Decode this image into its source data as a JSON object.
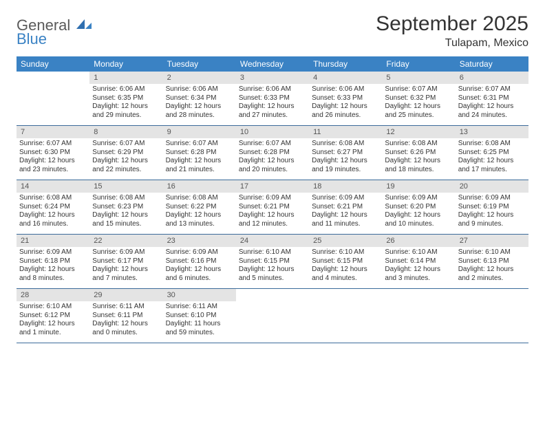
{
  "logo": {
    "part1": "General",
    "part2": "Blue"
  },
  "title": "September 2025",
  "location": "Tulapam, Mexico",
  "dow": [
    "Sunday",
    "Monday",
    "Tuesday",
    "Wednesday",
    "Thursday",
    "Friday",
    "Saturday"
  ],
  "colors": {
    "header_bg": "#3a82c4",
    "header_text": "#ffffff",
    "daynum_bg": "#e4e4e4",
    "rule": "#3a6a9a",
    "logo_gray": "#5a5a5a",
    "logo_blue": "#3a82c4"
  },
  "weeks": [
    [
      {
        "n": "",
        "sr": "",
        "ss": "",
        "dl": ""
      },
      {
        "n": "1",
        "sr": "Sunrise: 6:06 AM",
        "ss": "Sunset: 6:35 PM",
        "dl": "Daylight: 12 hours and 29 minutes."
      },
      {
        "n": "2",
        "sr": "Sunrise: 6:06 AM",
        "ss": "Sunset: 6:34 PM",
        "dl": "Daylight: 12 hours and 28 minutes."
      },
      {
        "n": "3",
        "sr": "Sunrise: 6:06 AM",
        "ss": "Sunset: 6:33 PM",
        "dl": "Daylight: 12 hours and 27 minutes."
      },
      {
        "n": "4",
        "sr": "Sunrise: 6:06 AM",
        "ss": "Sunset: 6:33 PM",
        "dl": "Daylight: 12 hours and 26 minutes."
      },
      {
        "n": "5",
        "sr": "Sunrise: 6:07 AM",
        "ss": "Sunset: 6:32 PM",
        "dl": "Daylight: 12 hours and 25 minutes."
      },
      {
        "n": "6",
        "sr": "Sunrise: 6:07 AM",
        "ss": "Sunset: 6:31 PM",
        "dl": "Daylight: 12 hours and 24 minutes."
      }
    ],
    [
      {
        "n": "7",
        "sr": "Sunrise: 6:07 AM",
        "ss": "Sunset: 6:30 PM",
        "dl": "Daylight: 12 hours and 23 minutes."
      },
      {
        "n": "8",
        "sr": "Sunrise: 6:07 AM",
        "ss": "Sunset: 6:29 PM",
        "dl": "Daylight: 12 hours and 22 minutes."
      },
      {
        "n": "9",
        "sr": "Sunrise: 6:07 AM",
        "ss": "Sunset: 6:28 PM",
        "dl": "Daylight: 12 hours and 21 minutes."
      },
      {
        "n": "10",
        "sr": "Sunrise: 6:07 AM",
        "ss": "Sunset: 6:28 PM",
        "dl": "Daylight: 12 hours and 20 minutes."
      },
      {
        "n": "11",
        "sr": "Sunrise: 6:08 AM",
        "ss": "Sunset: 6:27 PM",
        "dl": "Daylight: 12 hours and 19 minutes."
      },
      {
        "n": "12",
        "sr": "Sunrise: 6:08 AM",
        "ss": "Sunset: 6:26 PM",
        "dl": "Daylight: 12 hours and 18 minutes."
      },
      {
        "n": "13",
        "sr": "Sunrise: 6:08 AM",
        "ss": "Sunset: 6:25 PM",
        "dl": "Daylight: 12 hours and 17 minutes."
      }
    ],
    [
      {
        "n": "14",
        "sr": "Sunrise: 6:08 AM",
        "ss": "Sunset: 6:24 PM",
        "dl": "Daylight: 12 hours and 16 minutes."
      },
      {
        "n": "15",
        "sr": "Sunrise: 6:08 AM",
        "ss": "Sunset: 6:23 PM",
        "dl": "Daylight: 12 hours and 15 minutes."
      },
      {
        "n": "16",
        "sr": "Sunrise: 6:08 AM",
        "ss": "Sunset: 6:22 PM",
        "dl": "Daylight: 12 hours and 13 minutes."
      },
      {
        "n": "17",
        "sr": "Sunrise: 6:09 AM",
        "ss": "Sunset: 6:21 PM",
        "dl": "Daylight: 12 hours and 12 minutes."
      },
      {
        "n": "18",
        "sr": "Sunrise: 6:09 AM",
        "ss": "Sunset: 6:21 PM",
        "dl": "Daylight: 12 hours and 11 minutes."
      },
      {
        "n": "19",
        "sr": "Sunrise: 6:09 AM",
        "ss": "Sunset: 6:20 PM",
        "dl": "Daylight: 12 hours and 10 minutes."
      },
      {
        "n": "20",
        "sr": "Sunrise: 6:09 AM",
        "ss": "Sunset: 6:19 PM",
        "dl": "Daylight: 12 hours and 9 minutes."
      }
    ],
    [
      {
        "n": "21",
        "sr": "Sunrise: 6:09 AM",
        "ss": "Sunset: 6:18 PM",
        "dl": "Daylight: 12 hours and 8 minutes."
      },
      {
        "n": "22",
        "sr": "Sunrise: 6:09 AM",
        "ss": "Sunset: 6:17 PM",
        "dl": "Daylight: 12 hours and 7 minutes."
      },
      {
        "n": "23",
        "sr": "Sunrise: 6:09 AM",
        "ss": "Sunset: 6:16 PM",
        "dl": "Daylight: 12 hours and 6 minutes."
      },
      {
        "n": "24",
        "sr": "Sunrise: 6:10 AM",
        "ss": "Sunset: 6:15 PM",
        "dl": "Daylight: 12 hours and 5 minutes."
      },
      {
        "n": "25",
        "sr": "Sunrise: 6:10 AM",
        "ss": "Sunset: 6:15 PM",
        "dl": "Daylight: 12 hours and 4 minutes."
      },
      {
        "n": "26",
        "sr": "Sunrise: 6:10 AM",
        "ss": "Sunset: 6:14 PM",
        "dl": "Daylight: 12 hours and 3 minutes."
      },
      {
        "n": "27",
        "sr": "Sunrise: 6:10 AM",
        "ss": "Sunset: 6:13 PM",
        "dl": "Daylight: 12 hours and 2 minutes."
      }
    ],
    [
      {
        "n": "28",
        "sr": "Sunrise: 6:10 AM",
        "ss": "Sunset: 6:12 PM",
        "dl": "Daylight: 12 hours and 1 minute."
      },
      {
        "n": "29",
        "sr": "Sunrise: 6:11 AM",
        "ss": "Sunset: 6:11 PM",
        "dl": "Daylight: 12 hours and 0 minutes."
      },
      {
        "n": "30",
        "sr": "Sunrise: 6:11 AM",
        "ss": "Sunset: 6:10 PM",
        "dl": "Daylight: 11 hours and 59 minutes."
      },
      {
        "n": "",
        "sr": "",
        "ss": "",
        "dl": ""
      },
      {
        "n": "",
        "sr": "",
        "ss": "",
        "dl": ""
      },
      {
        "n": "",
        "sr": "",
        "ss": "",
        "dl": ""
      },
      {
        "n": "",
        "sr": "",
        "ss": "",
        "dl": ""
      }
    ]
  ]
}
